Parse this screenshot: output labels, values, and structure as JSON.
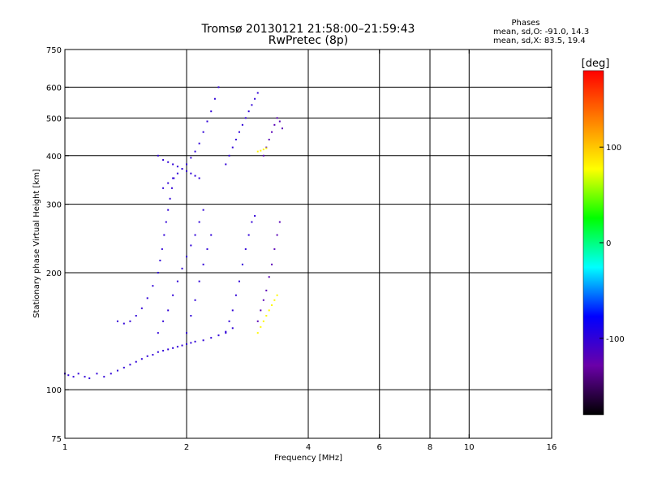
{
  "title_line1": "Tromsø 20130121 21:58:00–21:59:43",
  "title_line2": "RwPretec (8p)",
  "stats": {
    "heading": "Phases",
    "line1": "mean, sd,O: -91.0, 14.3",
    "line2": "mean, sd,X:  83.5, 19.4"
  },
  "chart_data": {
    "type": "scatter",
    "title": "Tromsø 20130121 21:58:00–21:59:43",
    "subtitle": "RwPretec (8p)",
    "xlabel": "Frequency [MHz]",
    "ylabel": "Stationary phase Virtual Height [km]",
    "xscale": "log",
    "yscale": "log",
    "xlim": [
      1,
      16
    ],
    "ylim": [
      75,
      750
    ],
    "x_ticks": [
      {
        "value": 1,
        "label": "1"
      },
      {
        "value": 2,
        "label": "2"
      },
      {
        "value": 4,
        "label": "4"
      },
      {
        "value": 6,
        "label": "6"
      },
      {
        "value": 8,
        "label": "8"
      },
      {
        "value": 10,
        "label": "10"
      },
      {
        "value": 16,
        "label": "16"
      }
    ],
    "x_gridlines": [
      2,
      4,
      6,
      8,
      10
    ],
    "y_ticks": [
      {
        "value": 75,
        "label": "75"
      },
      {
        "value": 100,
        "label": "100"
      },
      {
        "value": 200,
        "label": "200"
      },
      {
        "value": 300,
        "label": "300"
      },
      {
        "value": 400,
        "label": "400"
      },
      {
        "value": 500,
        "label": "500"
      },
      {
        "value": 600,
        "label": "600"
      },
      {
        "value": 750,
        "label": "750"
      }
    ],
    "y_gridlines": [
      100,
      200,
      300,
      400,
      500,
      600
    ],
    "grid": true,
    "colorbar": {
      "label": "[deg]",
      "range": [
        -180,
        180
      ],
      "ticks": [
        {
          "value": 100,
          "label": "100"
        },
        {
          "value": 0,
          "label": "0"
        },
        {
          "value": -100,
          "label": "-100"
        }
      ],
      "colors": [
        "#000000",
        "#6a00a8",
        "#0000ff",
        "#00ffff",
        "#00ff00",
        "#ffff00",
        "#ff8000",
        "#ff0000"
      ]
    },
    "series": [
      {
        "phase": -100,
        "points": [
          [
            1.0,
            110
          ],
          [
            1.02,
            109
          ],
          [
            1.05,
            108
          ],
          [
            1.08,
            110
          ],
          [
            1.12,
            108
          ],
          [
            1.15,
            107
          ],
          [
            1.2,
            110
          ],
          [
            1.25,
            108
          ],
          [
            1.3,
            110
          ],
          [
            1.35,
            112
          ],
          [
            1.4,
            114
          ],
          [
            1.45,
            116
          ],
          [
            1.5,
            118
          ],
          [
            1.55,
            120
          ],
          [
            1.6,
            122
          ],
          [
            1.65,
            123
          ],
          [
            1.7,
            125
          ],
          [
            1.75,
            126
          ],
          [
            1.8,
            127
          ],
          [
            1.85,
            128
          ],
          [
            1.9,
            129
          ],
          [
            1.95,
            130
          ],
          [
            2.0,
            131
          ],
          [
            2.05,
            132
          ],
          [
            2.1,
            133
          ],
          [
            2.2,
            134
          ],
          [
            2.3,
            136
          ],
          [
            2.4,
            138
          ],
          [
            2.5,
            141
          ],
          [
            2.6,
            144
          ]
        ]
      },
      {
        "phase": -100,
        "points": [
          [
            1.35,
            150
          ],
          [
            1.4,
            148
          ],
          [
            1.45,
            150
          ],
          [
            1.5,
            155
          ],
          [
            1.55,
            162
          ],
          [
            1.6,
            172
          ],
          [
            1.65,
            185
          ],
          [
            1.7,
            200
          ],
          [
            1.72,
            215
          ],
          [
            1.74,
            230
          ],
          [
            1.76,
            250
          ],
          [
            1.78,
            270
          ],
          [
            1.8,
            290
          ],
          [
            1.82,
            310
          ],
          [
            1.84,
            330
          ],
          [
            1.86,
            350
          ]
        ]
      },
      {
        "phase": -100,
        "points": [
          [
            1.7,
            140
          ],
          [
            1.75,
            150
          ],
          [
            1.8,
            160
          ],
          [
            1.85,
            175
          ],
          [
            1.9,
            190
          ],
          [
            1.95,
            205
          ],
          [
            2.0,
            220
          ],
          [
            2.05,
            235
          ],
          [
            2.1,
            250
          ],
          [
            2.15,
            270
          ],
          [
            2.2,
            290
          ]
        ]
      },
      {
        "phase": -100,
        "points": [
          [
            2.0,
            140
          ],
          [
            2.05,
            155
          ],
          [
            2.1,
            170
          ],
          [
            2.15,
            190
          ],
          [
            2.2,
            210
          ],
          [
            2.25,
            230
          ],
          [
            2.3,
            250
          ]
        ]
      },
      {
        "phase": -100,
        "points": [
          [
            1.75,
            330
          ],
          [
            1.8,
            340
          ],
          [
            1.85,
            350
          ],
          [
            1.9,
            360
          ],
          [
            1.95,
            370
          ],
          [
            2.0,
            380
          ],
          [
            2.05,
            395
          ],
          [
            2.1,
            410
          ],
          [
            2.15,
            430
          ],
          [
            2.2,
            460
          ],
          [
            2.25,
            490
          ],
          [
            2.3,
            520
          ],
          [
            2.35,
            560
          ],
          [
            2.4,
            600
          ]
        ]
      },
      {
        "phase": -100,
        "points": [
          [
            1.7,
            400
          ],
          [
            1.75,
            390
          ],
          [
            1.8,
            385
          ],
          [
            1.85,
            380
          ],
          [
            1.9,
            375
          ],
          [
            1.95,
            370
          ],
          [
            2.0,
            365
          ],
          [
            2.05,
            360
          ],
          [
            2.1,
            355
          ],
          [
            2.15,
            350
          ]
        ]
      },
      {
        "phase": -100,
        "points": [
          [
            2.5,
            380
          ],
          [
            2.55,
            400
          ],
          [
            2.6,
            420
          ],
          [
            2.65,
            440
          ],
          [
            2.7,
            460
          ],
          [
            2.75,
            480
          ],
          [
            2.8,
            500
          ],
          [
            2.85,
            520
          ],
          [
            2.9,
            540
          ],
          [
            2.95,
            560
          ],
          [
            3.0,
            580
          ]
        ]
      },
      {
        "phase": -100,
        "points": [
          [
            2.5,
            140
          ],
          [
            2.55,
            150
          ],
          [
            2.6,
            160
          ],
          [
            2.65,
            175
          ],
          [
            2.7,
            190
          ],
          [
            2.75,
            210
          ],
          [
            2.8,
            230
          ],
          [
            2.85,
            250
          ],
          [
            2.9,
            270
          ],
          [
            2.95,
            280
          ]
        ]
      },
      {
        "phase": -120,
        "points": [
          [
            3.0,
            150
          ],
          [
            3.05,
            160
          ],
          [
            3.1,
            170
          ],
          [
            3.15,
            180
          ],
          [
            3.2,
            195
          ],
          [
            3.25,
            210
          ],
          [
            3.3,
            230
          ],
          [
            3.35,
            250
          ],
          [
            3.4,
            270
          ]
        ]
      },
      {
        "phase": -120,
        "points": [
          [
            3.1,
            400
          ],
          [
            3.15,
            420
          ],
          [
            3.2,
            440
          ],
          [
            3.25,
            460
          ],
          [
            3.3,
            480
          ],
          [
            3.35,
            500
          ],
          [
            3.4,
            490
          ],
          [
            3.45,
            470
          ]
        ]
      },
      {
        "phase": 80,
        "points": [
          [
            3.0,
            140
          ],
          [
            3.05,
            145
          ],
          [
            3.1,
            150
          ],
          [
            3.15,
            155
          ],
          [
            3.2,
            160
          ],
          [
            3.25,
            165
          ],
          [
            3.3,
            170
          ],
          [
            3.35,
            175
          ]
        ]
      },
      {
        "phase": 80,
        "points": [
          [
            3.0,
            410
          ],
          [
            3.05,
            412
          ],
          [
            3.1,
            415
          ],
          [
            3.15,
            418
          ]
        ]
      }
    ]
  }
}
